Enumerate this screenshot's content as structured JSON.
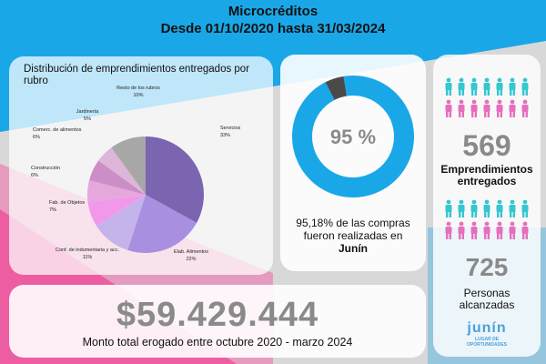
{
  "header": {
    "title": "Microcréditos",
    "subtitle": "Desde 01/10/2020 hasta 31/03/2024"
  },
  "colors": {
    "pink": "#e94e9a",
    "blue": "#1aa7e8",
    "purple": "#7b6bb3",
    "grey": "#8a8a8a"
  },
  "chart_data": [
    {
      "type": "pie",
      "title": "Distribución de emprendimientos entregados por rubro",
      "series": [
        {
          "categories": [
            "Servicios",
            "Elab. Alimentos",
            "Conf. de indumentaria y acc.",
            "Fab. de Objetos",
            "Construcción",
            "Comerc. de alimentos",
            "Jardinería",
            "Resto de los rubros"
          ],
          "values": [
            33,
            22,
            11,
            7,
            6,
            6,
            5,
            10
          ],
          "labels": [
            "33%",
            "22%",
            "11%",
            "7%",
            "6%",
            "6%",
            "5%",
            "10%"
          ],
          "colors": [
            "#7b64b0",
            "#a98fe0",
            "#c5b3ec",
            "#f298ea",
            "#e6a8dc",
            "#cc8ec6",
            "#ddb6da",
            "#a7a7a7"
          ]
        }
      ]
    },
    {
      "type": "pie",
      "title": "",
      "values": [
        95,
        5
      ],
      "center_label": "95 %",
      "colors": [
        "#1aa7e8",
        "#4a4a4a"
      ]
    }
  ],
  "donut": {
    "caption_line1": "95,18% de las compras",
    "caption_line2": "fueron realizadas en",
    "caption_line3": "Junín"
  },
  "stats": {
    "entrepreneurships_value": "569",
    "entrepreneurships_label_1": "Emprendimientos",
    "entrepreneurships_label_2": "entregados",
    "people_value": "725",
    "people_label_1": "Personas",
    "people_label_2": "alcanzadas"
  },
  "people_icons": {
    "icon": "person-icon",
    "colors": [
      "#33c7cf",
      "#e66fbd"
    ]
  },
  "logo": {
    "main": "junín",
    "sub_1": "LUGAR DE",
    "sub_2": "OPORTUNIDADES"
  },
  "total": {
    "value": "$59.429.444",
    "label": "Monto total erogado entre octubre 2020 - marzo 2024"
  }
}
